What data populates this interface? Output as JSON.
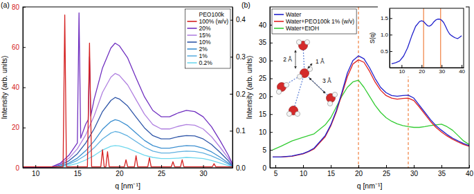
{
  "chart_data": [
    {
      "type": "line",
      "panel_label": "(a)",
      "xlabel": "q [nm⁻¹]",
      "ylabel": "Intensity (arb. units)",
      "xlim": [
        8.5,
        33.5
      ],
      "xticks": [
        10,
        15,
        20,
        25,
        30
      ],
      "ylim": [
        0,
        80
      ],
      "yticks": [
        0,
        20,
        40,
        60,
        80
      ],
      "y2lim": [
        0,
        0.435
      ],
      "y2ticks": [
        {
          "value": 0,
          "label": "0.0"
        },
        0.1,
        0.2,
        0.3,
        0.4
      ],
      "legend": "upper right",
      "legend_title": "PEO100k",
      "x": [
        8,
        10,
        12,
        13,
        14,
        15,
        16,
        17,
        18,
        19,
        19.5,
        20,
        21,
        22,
        23,
        24,
        25,
        26,
        27,
        28,
        29,
        30,
        31,
        32,
        33,
        33.5,
        34
      ],
      "series": [
        {
          "name": "100% (w/v)",
          "color": "#d42020",
          "x": [
            8,
            13.3,
            13.5,
            13.7,
            16.2,
            16.45,
            16.7,
            17.8,
            18.0,
            18.2,
            18.4,
            18.6,
            18.8,
            20.6,
            20.8,
            21.0,
            21.8,
            22.0,
            22.2,
            23.4,
            23.6,
            23.8,
            26.2,
            26.4,
            26.6,
            27.3,
            27.5,
            27.7,
            31.1,
            31.3,
            31.5,
            34
          ],
          "values": [
            0.5,
            0.5,
            76,
            0.5,
            0.5,
            62,
            0.5,
            0.5,
            9,
            0.5,
            0.5,
            8,
            0.5,
            0.5,
            4,
            0.5,
            0.5,
            6,
            0.5,
            0.5,
            5,
            0.5,
            0.5,
            3,
            0.5,
            0.5,
            4,
            0.5,
            0.5,
            2,
            0.5,
            0.5
          ]
        },
        {
          "name": "20%",
          "color": "#7030c0",
          "axis": "y2",
          "x": [
            8,
            10,
            12,
            13,
            14,
            15,
            15.2,
            15.4,
            16,
            16.3,
            16.45,
            16.6,
            17,
            18,
            19,
            19.5,
            20,
            21,
            22,
            23,
            24,
            25,
            26,
            27,
            28,
            29,
            30,
            31,
            32,
            33,
            33.5,
            34
          ],
          "values": [
            0,
            0,
            0.003,
            0.013,
            0.034,
            0.067,
            0.419,
            0.08,
            0.118,
            0.13,
            0.3,
            0.14,
            0.185,
            0.27,
            0.324,
            0.337,
            0.33,
            0.297,
            0.243,
            0.192,
            0.155,
            0.138,
            0.138,
            0.148,
            0.155,
            0.152,
            0.138,
            0.111,
            0.074,
            0.034,
            0.01,
            0
          ]
        },
        {
          "name": "15%",
          "color": "#b080e0",
          "axis": "y2",
          "values": [
            0,
            0,
            0.003,
            0.01,
            0.026,
            0.051,
            0.089,
            0.14,
            0.204,
            0.245,
            0.255,
            0.25,
            0.224,
            0.184,
            0.145,
            0.117,
            0.105,
            0.105,
            0.112,
            0.117,
            0.115,
            0.105,
            0.084,
            0.056,
            0.026,
            0.008,
            0
          ]
        },
        {
          "name": "10%",
          "color": "#2f56a8",
          "axis": "y2",
          "values": [
            0,
            0,
            0.002,
            0.008,
            0.019,
            0.038,
            0.067,
            0.105,
            0.152,
            0.182,
            0.19,
            0.186,
            0.167,
            0.137,
            0.108,
            0.087,
            0.078,
            0.078,
            0.084,
            0.087,
            0.086,
            0.078,
            0.063,
            0.042,
            0.019,
            0.006,
            0
          ]
        },
        {
          "name": "2%",
          "color": "#3c8fd0",
          "axis": "y2",
          "values": [
            0,
            0,
            0.001,
            0.005,
            0.013,
            0.026,
            0.046,
            0.072,
            0.104,
            0.125,
            0.13,
            0.127,
            0.114,
            0.094,
            0.074,
            0.06,
            0.053,
            0.053,
            0.057,
            0.06,
            0.059,
            0.053,
            0.043,
            0.029,
            0.013,
            0.004,
            0
          ]
        },
        {
          "name": "1%",
          "color": "#5fb0e0",
          "axis": "y2",
          "values": [
            0,
            0,
            0.001,
            0.004,
            0.01,
            0.02,
            0.034,
            0.054,
            0.078,
            0.094,
            0.098,
            0.096,
            0.086,
            0.071,
            0.056,
            0.045,
            0.04,
            0.04,
            0.043,
            0.045,
            0.044,
            0.04,
            0.032,
            0.022,
            0.01,
            0.003,
            0
          ]
        },
        {
          "name": "0.2%",
          "color": "#6fd8ee",
          "axis": "y2",
          "values": [
            0,
            0,
            0.001,
            0.002,
            0.006,
            0.012,
            0.021,
            0.033,
            0.048,
            0.058,
            0.06,
            0.059,
            0.053,
            0.043,
            0.034,
            0.028,
            0.025,
            0.025,
            0.026,
            0.028,
            0.027,
            0.025,
            0.02,
            0.013,
            0.006,
            0.002,
            0
          ]
        }
      ]
    },
    {
      "type": "line",
      "panel_label": "(b)",
      "xlabel": "q [nm⁻¹]",
      "ylabel": "Intensity (arb. units)",
      "xlim": [
        4,
        40
      ],
      "xticks": [
        5,
        10,
        15,
        20,
        25,
        30,
        35,
        40
      ],
      "ylim": [
        0,
        45
      ],
      "yticks": [
        0,
        5,
        10,
        15,
        20,
        25,
        30,
        35,
        40
      ],
      "legend": "upper left",
      "annotations": [
        "2 Å",
        "1 Å",
        "3 Å"
      ],
      "vlines": {
        "values": [
          20,
          29
        ],
        "color": "#f08040",
        "line_style": "dashed"
      },
      "x": [
        4.5,
        6,
        8,
        10,
        11,
        12,
        14,
        15,
        16,
        17,
        18,
        19,
        20,
        21,
        22,
        23,
        24,
        25,
        26,
        27,
        28,
        29,
        30,
        31,
        32,
        33,
        34,
        35,
        36,
        37,
        38,
        39,
        40
      ],
      "series": [
        {
          "name": "Water",
          "color": "#2020cc",
          "values": [
            3,
            3,
            3.3,
            4,
            4.6,
            5.5,
            9,
            12,
            16,
            21,
            26.5,
            30,
            31.3,
            30.5,
            28,
            25,
            22.5,
            21,
            20.2,
            20,
            20.2,
            20.3,
            19.5,
            17.5,
            15.5,
            13.5,
            11.8,
            10.5,
            9.3,
            8.3,
            7.5,
            6.8,
            6.2
          ]
        },
        {
          "name": "Water+PEO100k 1% (w/v)",
          "color": "#e0201f",
          "values": [
            3,
            3,
            3.2,
            3.9,
            4.5,
            5.3,
            8.7,
            11.7,
            15.6,
            20.5,
            25.5,
            29,
            30.2,
            29.5,
            27,
            24,
            21.7,
            20.2,
            19.5,
            19.2,
            19.4,
            19.5,
            18.8,
            17,
            15,
            13,
            11.3,
            10,
            8.9,
            8,
            7.2,
            6.5,
            6
          ]
        },
        {
          "name": "Water+EtOH",
          "color": "#33cc33",
          "values": [
            5,
            6,
            7.5,
            8.5,
            9,
            9.5,
            12,
            14,
            17,
            20,
            22.5,
            24,
            24.5,
            22.5,
            20,
            17.5,
            15.5,
            14,
            13,
            12.3,
            11.8,
            11.5,
            11.3,
            11.3,
            11.5,
            11.8,
            12,
            12.2,
            11.5,
            10.5,
            9,
            7.5,
            6.5
          ]
        }
      ]
    },
    {
      "type": "line",
      "ylabel": "S(q)",
      "xlim": [
        4,
        41
      ],
      "xticks": [
        10,
        20,
        30,
        40
      ],
      "ylim": [
        0,
        1.8
      ],
      "yticks": [
        0.5,
        {
          "value": 1,
          "label": "1.0"
        },
        1.5
      ],
      "vlines": {
        "values": [
          21,
          29.5
        ],
        "color": "#f08040",
        "line_style": "solid"
      },
      "x": [
        5,
        7,
        9,
        11,
        13,
        15,
        17,
        19,
        20,
        21,
        22,
        23,
        24,
        25,
        26,
        27,
        28,
        29,
        30,
        31,
        32,
        33,
        34,
        35,
        36,
        37,
        38,
        39,
        40
      ],
      "series": [
        {
          "color": "#2020cc",
          "values": [
            0.12,
            0.15,
            0.2,
            0.35,
            0.6,
            0.95,
            1.25,
            1.4,
            1.42,
            1.4,
            1.33,
            1.27,
            1.26,
            1.3,
            1.38,
            1.44,
            1.47,
            1.47,
            1.44,
            1.37,
            1.25,
            1.12,
            1.02,
            0.97,
            0.93,
            0.9,
            0.88,
            0.92,
            0.97
          ]
        }
      ]
    }
  ]
}
